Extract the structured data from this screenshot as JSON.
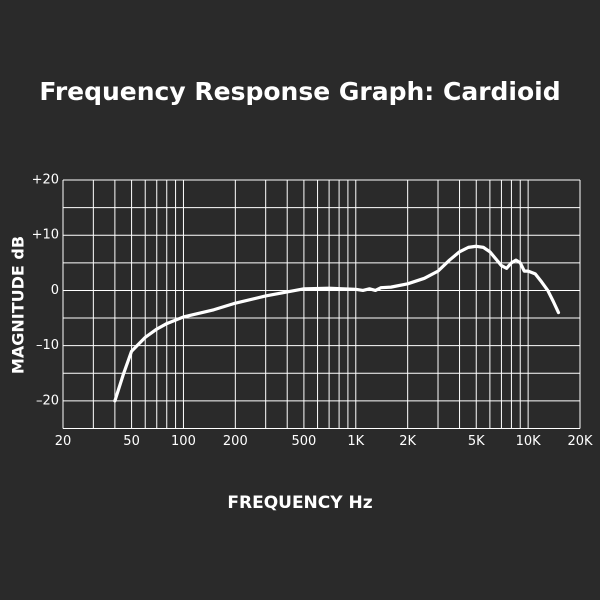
{
  "chart_data": {
    "type": "line",
    "title": "Frequency Response Graph: Cardioid",
    "x_label": "FREQUENCY Hz",
    "y_label": "MAGNITUDE dB",
    "log_x": true,
    "grid": true,
    "background": "#2a2a2a",
    "color": "#ffffff",
    "xlim": [
      20,
      20000
    ],
    "ylim": [
      -25,
      20
    ],
    "xticks": [
      20,
      50,
      100,
      200,
      500,
      {
        "value": 1000,
        "label": "1K"
      },
      {
        "value": 2000,
        "label": "2K"
      },
      {
        "value": 5000,
        "label": "5K"
      },
      {
        "value": 10000,
        "label": "10K"
      },
      {
        "value": 20000,
        "label": "20K"
      }
    ],
    "yticks": [
      {
        "value": 20,
        "label": "+20"
      },
      {
        "value": 10,
        "label": "+10"
      },
      0,
      {
        "value": -10,
        "label": "–10"
      },
      {
        "value": -20,
        "label": "–20"
      }
    ],
    "xgrid": [
      20,
      30,
      40,
      50,
      60,
      70,
      80,
      90,
      100,
      200,
      300,
      400,
      500,
      600,
      700,
      800,
      900,
      1000,
      2000,
      3000,
      4000,
      5000,
      6000,
      7000,
      8000,
      9000,
      10000,
      20000
    ],
    "ygrid": [
      20,
      15,
      10,
      5,
      0,
      -5,
      -10,
      -15,
      -20,
      -25
    ],
    "x": [
      40,
      45,
      50,
      60,
      70,
      80,
      100,
      150,
      200,
      300,
      500,
      700,
      1000,
      1100,
      1200,
      1300,
      1400,
      1600,
      2000,
      2500,
      3000,
      3500,
      4000,
      4500,
      5000,
      5500,
      6000,
      7000,
      7500,
      8000,
      8500,
      9000,
      9500,
      10000,
      11000,
      12000,
      13000,
      14000,
      15000
    ],
    "values": [
      -20,
      -15,
      -11,
      -8.5,
      -7,
      -6,
      -4.8,
      -3.5,
      -2.3,
      -1,
      0.3,
      0.4,
      0.2,
      0,
      0.3,
      0,
      0.5,
      0.6,
      1.2,
      2.2,
      3.5,
      5.5,
      7,
      7.8,
      8,
      7.8,
      7,
      4.5,
      4,
      5,
      5.5,
      5,
      3.5,
      3.5,
      3,
      1.5,
      0,
      -2,
      -4
    ]
  }
}
